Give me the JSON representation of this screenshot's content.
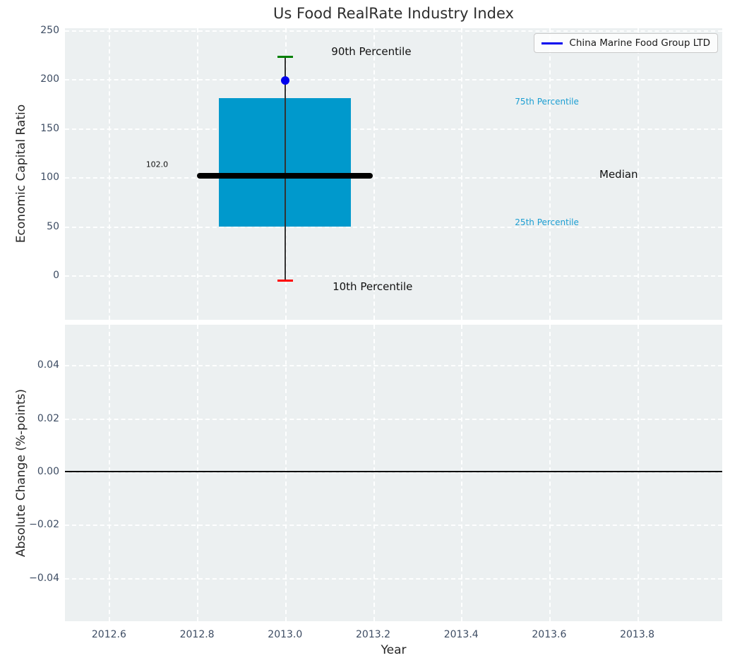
{
  "figure": {
    "title": "Us Food RealRate Industry Index",
    "background_color": "#ffffff",
    "axes_background_color": "#ecf0f1",
    "grid_color": "#ffffff",
    "tick_label_color": "#3d4c63"
  },
  "legend": {
    "label": "China Marine Food Group LTD",
    "line_color": "#0000ee",
    "position": "upper right"
  },
  "chart_data": [
    {
      "type": "boxplot",
      "title": "Us Food RealRate Industry Index",
      "ylabel": "Economic Capital Ratio",
      "xlim": [
        2012.5,
        2013.993
      ],
      "ylim": [
        -45,
        252
      ],
      "yticks": [
        250,
        200,
        150,
        100,
        50,
        0
      ],
      "ytick_labels": [
        "250",
        "200",
        "150",
        "100",
        "50",
        "0"
      ],
      "grid": true,
      "box": {
        "x": 2013.0,
        "box_half_width_years": 0.15,
        "p10": -5,
        "p25": 50,
        "median": 102,
        "p75": 181,
        "p90": 223,
        "median_line_x0": 2012.8,
        "median_line_x1": 2013.2,
        "median_label": "102.0",
        "box_color": "#0099cc",
        "whisker_color": "#333333",
        "median_color": "#000000",
        "p90_cap_color": "#008000",
        "p10_cap_color": "#ff0000"
      },
      "company_point": {
        "name": "China Marine Food Group LTD",
        "x": 2013.0,
        "y": 199,
        "color": "#0000ee"
      },
      "annotations": [
        {
          "text": "90th Percentile",
          "x": 2013.105,
          "y": 228,
          "color": "#111111",
          "font_size": 15
        },
        {
          "text": "10th Percentile",
          "x": 2013.108,
          "y": -11.5,
          "color": "#111111",
          "font_size": 15
        },
        {
          "text": "75th Percentile",
          "x": 2013.522,
          "y": 177,
          "color": "#1b9ed2",
          "font_size": 12
        },
        {
          "text": "25th Percentile",
          "x": 2013.522,
          "y": 54,
          "color": "#1b9ed2",
          "font_size": 12
        },
        {
          "text": "Median",
          "x": 2013.714,
          "y": 103.5,
          "color": "#111111",
          "font_size": 15
        },
        {
          "text": "102.0",
          "x": 2012.684,
          "y": 113,
          "color": "#111111",
          "font_size": 11
        }
      ]
    },
    {
      "type": "line",
      "ylabel": "Absolute Change (%-points)",
      "xlabel": "Year",
      "xlim": [
        2012.5,
        2013.993
      ],
      "ylim": [
        -0.0562,
        0.0551
      ],
      "yticks": [
        0.04,
        0.02,
        0.0,
        -0.02,
        -0.04
      ],
      "ytick_labels": [
        "0.04",
        "0.02",
        "0.00",
        "−0.02",
        "−0.04"
      ],
      "xticks": [
        2012.6,
        2012.8,
        2013.0,
        2013.2,
        2013.4,
        2013.6,
        2013.8
      ],
      "xtick_labels": [
        "2012.6",
        "2012.8",
        "2013.0",
        "2013.2",
        "2013.4",
        "2013.6",
        "2013.8"
      ],
      "zero_line": 0.0,
      "zero_line_color": "#000000",
      "grid": true,
      "series": []
    }
  ]
}
